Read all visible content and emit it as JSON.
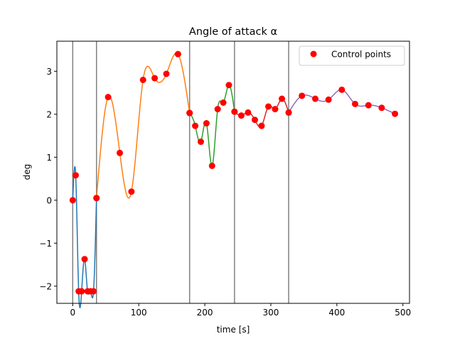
{
  "chart_data": {
    "type": "line",
    "title": "Angle of attack α",
    "xlabel": "time [s]",
    "ylabel": "deg",
    "xlim": [
      -24,
      510
    ],
    "ylim": [
      -2.4,
      3.7
    ],
    "xticks": [
      0,
      100,
      200,
      300,
      400,
      500
    ],
    "yticks": [
      -2,
      -1,
      0,
      1,
      2,
      3
    ],
    "xtick_labels": [
      "0",
      "100",
      "200",
      "300",
      "400",
      "500"
    ],
    "ytick_labels": [
      "−2",
      "−1",
      "0",
      "1",
      "2",
      "3"
    ],
    "grid": false,
    "legend": {
      "position": "top-right",
      "entries": [
        "Control points"
      ]
    },
    "vertical_lines": [
      0,
      36,
      177,
      245,
      327
    ],
    "vertical_line_color": "#808080",
    "marker_color": "#ff0000",
    "series": [
      {
        "color": "#1f77b4",
        "x": [
          0,
          4.5,
          9,
          13.5,
          18,
          22.5,
          27,
          31.5,
          36
        ],
        "y": [
          0,
          0.58,
          -2.12,
          -2.12,
          -1.37,
          -2.12,
          -2.12,
          -2.12,
          0.05
        ]
      },
      {
        "color": "#ff7f0e",
        "x": [
          36,
          53.6,
          71.3,
          88.9,
          106.5,
          124.1,
          141.8,
          159.4,
          177
        ],
        "y": [
          0.05,
          2.4,
          1.1,
          0.2,
          2.8,
          2.84,
          2.94,
          3.4,
          2.03
        ]
      },
      {
        "color": "#2ca02c",
        "x": [
          177,
          185.5,
          194,
          202.5,
          211,
          219.5,
          228,
          236.5,
          245
        ],
        "y": [
          2.03,
          1.73,
          1.36,
          1.79,
          0.8,
          2.12,
          2.27,
          2.68,
          2.06
        ]
      },
      {
        "color": "#d62728",
        "x": [
          245,
          255.3,
          265.5,
          275.8,
          286,
          296.3,
          306.5,
          316.8,
          327
        ],
        "y": [
          2.06,
          1.97,
          2.04,
          1.87,
          1.73,
          2.18,
          2.12,
          2.36,
          2.04
        ]
      },
      {
        "color": "#9467bd",
        "x": [
          327,
          347.1,
          367.3,
          387.4,
          407.5,
          427.6,
          447.8,
          467.9,
          488
        ],
        "y": [
          2.04,
          2.43,
          2.36,
          2.34,
          2.57,
          2.24,
          2.21,
          2.15,
          2.01
        ]
      }
    ]
  }
}
